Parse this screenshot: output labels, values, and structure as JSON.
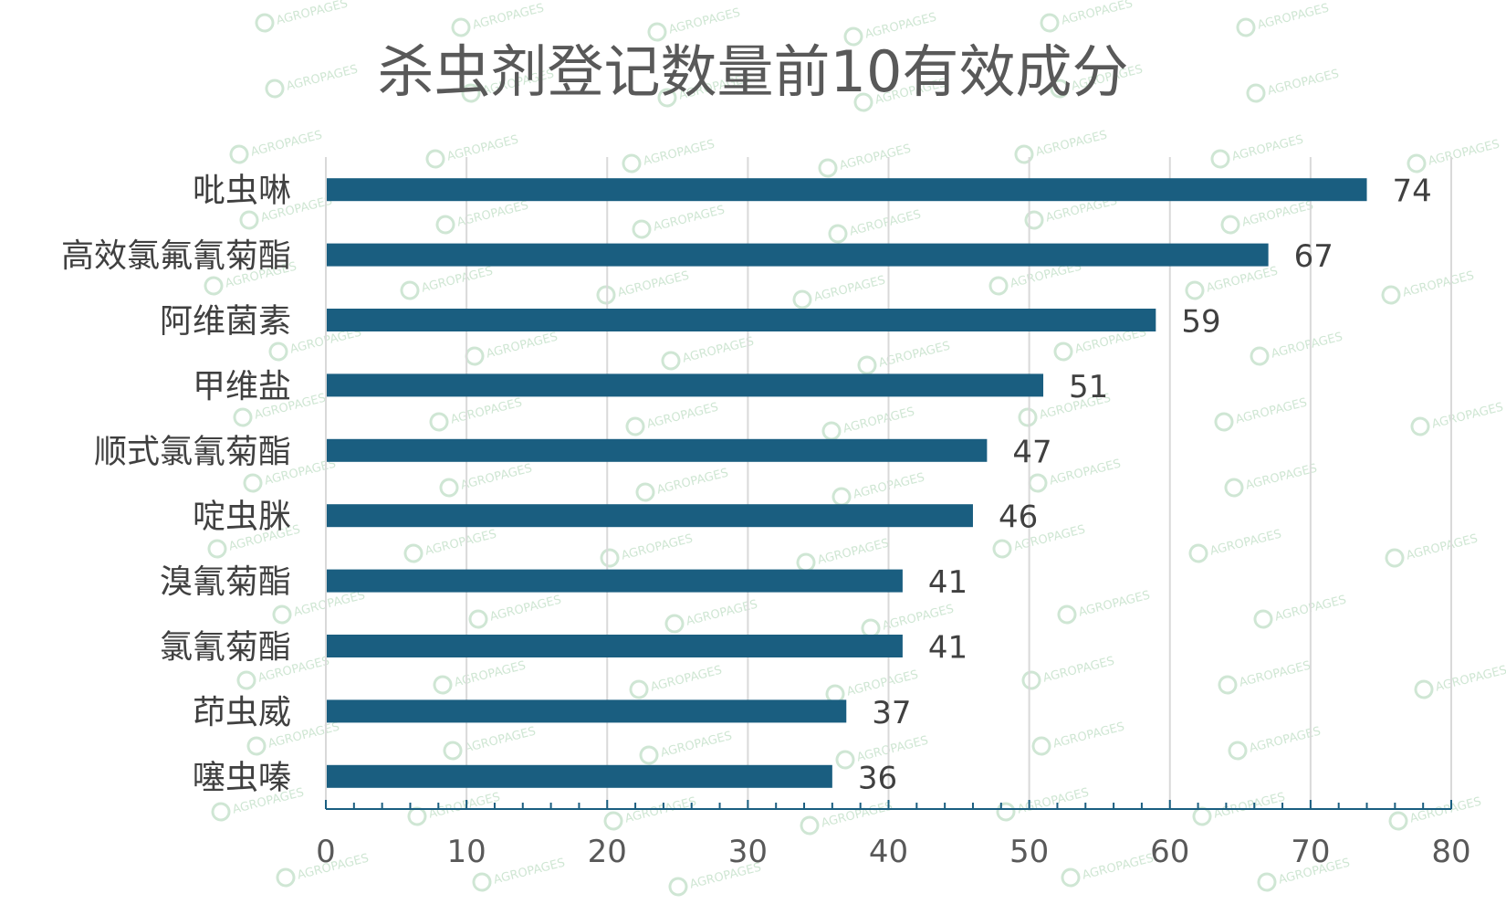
{
  "chart_data": {
    "type": "bar",
    "orientation": "horizontal",
    "title": "杀虫剂登记数量前10有效成分",
    "categories": [
      "吡虫啉",
      "高效氯氟氰菊酯",
      "阿维菌素",
      "甲维盐",
      "顺式氯氰菊酯",
      "啶虫脒",
      "溴氰菊酯",
      "氯氰菊酯",
      "茚虫威",
      "噻虫嗪"
    ],
    "values": [
      74,
      67,
      59,
      51,
      47,
      46,
      41,
      41,
      37,
      36
    ],
    "xlim": [
      0,
      80
    ],
    "xticks": [
      0,
      10,
      20,
      30,
      40,
      50,
      60,
      70,
      80
    ],
    "grid": true,
    "legend": "none",
    "bar_color": "#1a5e80",
    "grid_color": "#d9d9d9",
    "axis_color": "#1a5e80"
  },
  "watermark": {
    "text": "AGROPAGES",
    "color": "#a8d2b0"
  }
}
